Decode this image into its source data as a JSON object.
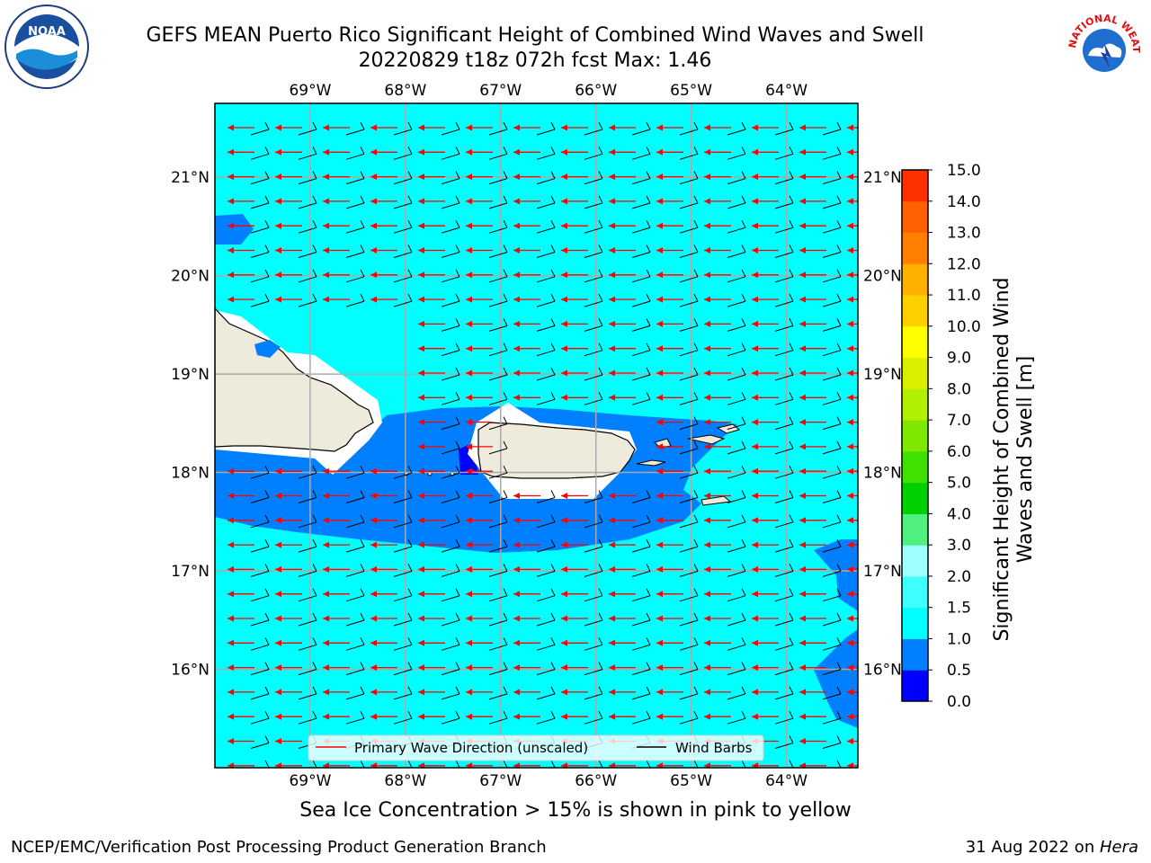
{
  "title": {
    "line1": "GEFS MEAN Puerto Rico Significant Height of Combined Wind Waves and Swell",
    "line2": "20220829 t18z 072h fcst   Max: 1.46"
  },
  "map": {
    "lon_range": [
      -70.0,
      -63.25
    ],
    "lat_range": [
      15.0,
      21.75
    ],
    "lon_ticks": [
      "69°W",
      "68°W",
      "67°W",
      "66°W",
      "65°W",
      "64°W"
    ],
    "lat_ticks": [
      "21°N",
      "20°N",
      "19°N",
      "18°N",
      "17°N",
      "16°N"
    ],
    "grid": true
  },
  "legend": {
    "wave_label": "Primary Wave Direction (unscaled)",
    "barb_label": "Wind Barbs",
    "wave_color": "#ff0000",
    "barb_color": "#000000"
  },
  "colorbar": {
    "label": "Significant Height of Combined Wind Waves and Swell [m]",
    "ticks": [
      "0.0",
      "0.5",
      "1.0",
      "1.5",
      "2.0",
      "3.0",
      "4.0",
      "5.0",
      "6.0",
      "7.0",
      "8.0",
      "9.0",
      "10.0",
      "11.0",
      "12.0",
      "13.0",
      "14.0",
      "15.0"
    ],
    "colors": [
      "#0000ff",
      "#0080ff",
      "#00ffff",
      "#40ffff",
      "#a0ffff",
      "#50f080",
      "#00d000",
      "#40e000",
      "#80e800",
      "#b0f000",
      "#d8f000",
      "#ffff00",
      "#ffd000",
      "#ffb000",
      "#ff8000",
      "#ff6000",
      "#ff3000",
      "#ff0000"
    ]
  },
  "logos": {
    "left": "NOAA",
    "right_text": "NATIONAL WEATHER SERVICE"
  },
  "caption": "Sea Ice Concentration > 15% is shown in pink to yellow",
  "footer": {
    "left": "NCEP/EMC/Verification Post Processing Product Generation Branch",
    "right_date": "31 Aug 2022 on ",
    "right_host": "Hera"
  },
  "colors": {
    "ocean_light": "#00ffff",
    "ocean_mid": "#0080ff",
    "ocean_deep": "#0000ff",
    "land": "#eeebdc"
  }
}
